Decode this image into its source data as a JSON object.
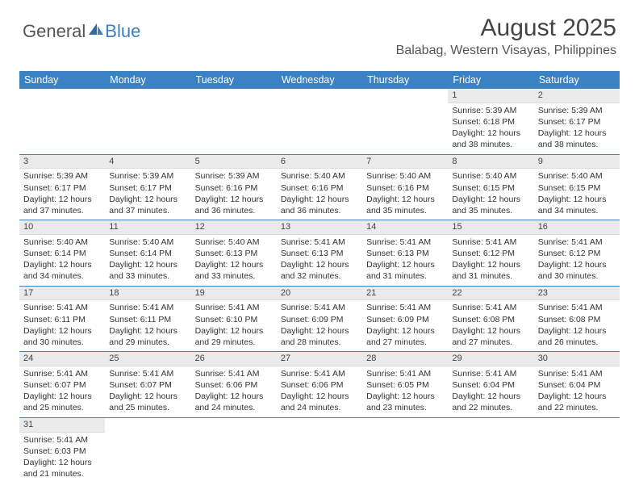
{
  "brand": {
    "part1": "General",
    "part2": "Blue"
  },
  "title": "August 2025",
  "location": "Balabag, Western Visayas, Philippines",
  "colors": {
    "header_bg": "#3b82c4",
    "header_text": "#ffffff",
    "daybar_bg": "#eaeaea",
    "row_border": "#3b82c4",
    "brand_gray": "#555555",
    "brand_blue": "#3b7fc4"
  },
  "weekdays": [
    "Sunday",
    "Monday",
    "Tuesday",
    "Wednesday",
    "Thursday",
    "Friday",
    "Saturday"
  ],
  "weeks": [
    [
      {
        "day": "",
        "lines": []
      },
      {
        "day": "",
        "lines": []
      },
      {
        "day": "",
        "lines": []
      },
      {
        "day": "",
        "lines": []
      },
      {
        "day": "",
        "lines": []
      },
      {
        "day": "1",
        "lines": [
          "Sunrise: 5:39 AM",
          "Sunset: 6:18 PM",
          "Daylight: 12 hours",
          "and 38 minutes."
        ]
      },
      {
        "day": "2",
        "lines": [
          "Sunrise: 5:39 AM",
          "Sunset: 6:17 PM",
          "Daylight: 12 hours",
          "and 38 minutes."
        ]
      }
    ],
    [
      {
        "day": "3",
        "lines": [
          "Sunrise: 5:39 AM",
          "Sunset: 6:17 PM",
          "Daylight: 12 hours",
          "and 37 minutes."
        ]
      },
      {
        "day": "4",
        "lines": [
          "Sunrise: 5:39 AM",
          "Sunset: 6:17 PM",
          "Daylight: 12 hours",
          "and 37 minutes."
        ]
      },
      {
        "day": "5",
        "lines": [
          "Sunrise: 5:39 AM",
          "Sunset: 6:16 PM",
          "Daylight: 12 hours",
          "and 36 minutes."
        ]
      },
      {
        "day": "6",
        "lines": [
          "Sunrise: 5:40 AM",
          "Sunset: 6:16 PM",
          "Daylight: 12 hours",
          "and 36 minutes."
        ]
      },
      {
        "day": "7",
        "lines": [
          "Sunrise: 5:40 AM",
          "Sunset: 6:16 PM",
          "Daylight: 12 hours",
          "and 35 minutes."
        ]
      },
      {
        "day": "8",
        "lines": [
          "Sunrise: 5:40 AM",
          "Sunset: 6:15 PM",
          "Daylight: 12 hours",
          "and 35 minutes."
        ]
      },
      {
        "day": "9",
        "lines": [
          "Sunrise: 5:40 AM",
          "Sunset: 6:15 PM",
          "Daylight: 12 hours",
          "and 34 minutes."
        ]
      }
    ],
    [
      {
        "day": "10",
        "lines": [
          "Sunrise: 5:40 AM",
          "Sunset: 6:14 PM",
          "Daylight: 12 hours",
          "and 34 minutes."
        ]
      },
      {
        "day": "11",
        "lines": [
          "Sunrise: 5:40 AM",
          "Sunset: 6:14 PM",
          "Daylight: 12 hours",
          "and 33 minutes."
        ]
      },
      {
        "day": "12",
        "lines": [
          "Sunrise: 5:40 AM",
          "Sunset: 6:13 PM",
          "Daylight: 12 hours",
          "and 33 minutes."
        ]
      },
      {
        "day": "13",
        "lines": [
          "Sunrise: 5:41 AM",
          "Sunset: 6:13 PM",
          "Daylight: 12 hours",
          "and 32 minutes."
        ]
      },
      {
        "day": "14",
        "lines": [
          "Sunrise: 5:41 AM",
          "Sunset: 6:13 PM",
          "Daylight: 12 hours",
          "and 31 minutes."
        ]
      },
      {
        "day": "15",
        "lines": [
          "Sunrise: 5:41 AM",
          "Sunset: 6:12 PM",
          "Daylight: 12 hours",
          "and 31 minutes."
        ]
      },
      {
        "day": "16",
        "lines": [
          "Sunrise: 5:41 AM",
          "Sunset: 6:12 PM",
          "Daylight: 12 hours",
          "and 30 minutes."
        ]
      }
    ],
    [
      {
        "day": "17",
        "lines": [
          "Sunrise: 5:41 AM",
          "Sunset: 6:11 PM",
          "Daylight: 12 hours",
          "and 30 minutes."
        ]
      },
      {
        "day": "18",
        "lines": [
          "Sunrise: 5:41 AM",
          "Sunset: 6:11 PM",
          "Daylight: 12 hours",
          "and 29 minutes."
        ]
      },
      {
        "day": "19",
        "lines": [
          "Sunrise: 5:41 AM",
          "Sunset: 6:10 PM",
          "Daylight: 12 hours",
          "and 29 minutes."
        ]
      },
      {
        "day": "20",
        "lines": [
          "Sunrise: 5:41 AM",
          "Sunset: 6:09 PM",
          "Daylight: 12 hours",
          "and 28 minutes."
        ]
      },
      {
        "day": "21",
        "lines": [
          "Sunrise: 5:41 AM",
          "Sunset: 6:09 PM",
          "Daylight: 12 hours",
          "and 27 minutes."
        ]
      },
      {
        "day": "22",
        "lines": [
          "Sunrise: 5:41 AM",
          "Sunset: 6:08 PM",
          "Daylight: 12 hours",
          "and 27 minutes."
        ]
      },
      {
        "day": "23",
        "lines": [
          "Sunrise: 5:41 AM",
          "Sunset: 6:08 PM",
          "Daylight: 12 hours",
          "and 26 minutes."
        ]
      }
    ],
    [
      {
        "day": "24",
        "lines": [
          "Sunrise: 5:41 AM",
          "Sunset: 6:07 PM",
          "Daylight: 12 hours",
          "and 25 minutes."
        ]
      },
      {
        "day": "25",
        "lines": [
          "Sunrise: 5:41 AM",
          "Sunset: 6:07 PM",
          "Daylight: 12 hours",
          "and 25 minutes."
        ]
      },
      {
        "day": "26",
        "lines": [
          "Sunrise: 5:41 AM",
          "Sunset: 6:06 PM",
          "Daylight: 12 hours",
          "and 24 minutes."
        ]
      },
      {
        "day": "27",
        "lines": [
          "Sunrise: 5:41 AM",
          "Sunset: 6:06 PM",
          "Daylight: 12 hours",
          "and 24 minutes."
        ]
      },
      {
        "day": "28",
        "lines": [
          "Sunrise: 5:41 AM",
          "Sunset: 6:05 PM",
          "Daylight: 12 hours",
          "and 23 minutes."
        ]
      },
      {
        "day": "29",
        "lines": [
          "Sunrise: 5:41 AM",
          "Sunset: 6:04 PM",
          "Daylight: 12 hours",
          "and 22 minutes."
        ]
      },
      {
        "day": "30",
        "lines": [
          "Sunrise: 5:41 AM",
          "Sunset: 6:04 PM",
          "Daylight: 12 hours",
          "and 22 minutes."
        ]
      }
    ],
    [
      {
        "day": "31",
        "lines": [
          "Sunrise: 5:41 AM",
          "Sunset: 6:03 PM",
          "Daylight: 12 hours",
          "and 21 minutes."
        ]
      },
      {
        "day": "",
        "lines": []
      },
      {
        "day": "",
        "lines": []
      },
      {
        "day": "",
        "lines": []
      },
      {
        "day": "",
        "lines": []
      },
      {
        "day": "",
        "lines": []
      },
      {
        "day": "",
        "lines": []
      }
    ]
  ]
}
